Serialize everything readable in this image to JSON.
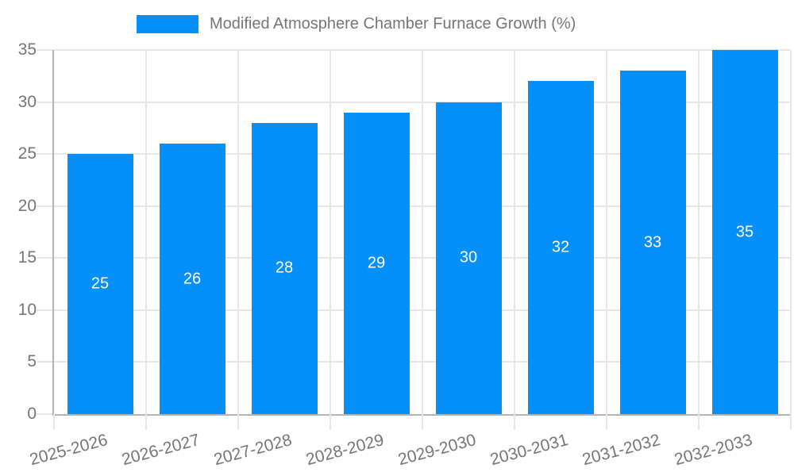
{
  "legend": {
    "label": "Modified Atmosphere Chamber Furnace Growth (%)"
  },
  "chart_data": {
    "type": "bar",
    "title": "",
    "xlabel": "",
    "ylabel": "",
    "categories": [
      "2025-2026",
      "2026-2027",
      "2027-2028",
      "2028-2029",
      "2029-2030",
      "2030-2031",
      "2031-2032",
      "2032-2033"
    ],
    "values": [
      25,
      26,
      28,
      29,
      30,
      32,
      33,
      35
    ],
    "series_name": "Modified Atmosphere Chamber Furnace Growth (%)",
    "bar_value_labels": [
      25,
      26,
      28,
      29,
      30,
      32,
      33,
      35
    ],
    "ylim": [
      0,
      35
    ],
    "yticks": [
      0,
      5,
      10,
      15,
      20,
      25,
      30,
      35
    ],
    "grid": "horizontal-and-vertical",
    "legend_position": "top",
    "colors": {
      "bar": "#0590f9",
      "bar_label": "#ffffff",
      "axis_text": "#757575",
      "axis_line": "#b3b3b3",
      "gridline": "#e6e6e6"
    }
  }
}
